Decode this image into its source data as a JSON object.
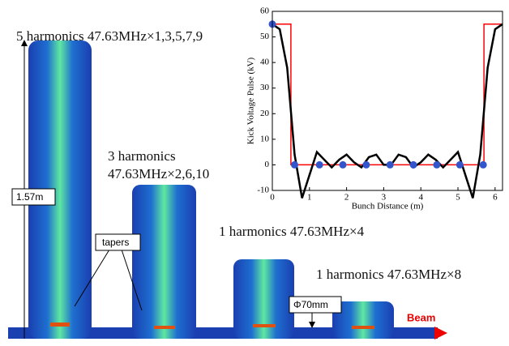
{
  "chart_data": {
    "type": "line",
    "xlabel": "Bunch Distance (m)",
    "ylabel": "Kick Voltage Pulse (kV)",
    "xlim": [
      0,
      6.2
    ],
    "xticks": [
      0,
      1,
      2,
      3,
      4,
      5,
      6
    ],
    "ylim": [
      -10,
      60
    ],
    "yticks": [
      -10,
      0,
      10,
      20,
      30,
      40,
      50,
      60
    ],
    "series": [
      {
        "style": "line",
        "color": "#ff0000",
        "x": [
          0,
          0.5,
          0.5,
          5.7,
          5.7,
          6.2
        ],
        "values": [
          55,
          55,
          0,
          0,
          55,
          55
        ]
      },
      {
        "style": "line",
        "color": "#000000",
        "x": [
          0,
          0.2,
          0.4,
          0.6,
          0.8,
          1.0,
          1.2,
          1.4,
          1.6,
          1.8,
          2.0,
          2.2,
          2.4,
          2.6,
          2.8,
          3.0,
          3.2,
          3.4,
          3.6,
          3.8,
          4.0,
          4.2,
          4.4,
          4.6,
          4.8,
          5.0,
          5.2,
          5.4,
          5.6,
          5.8,
          6.0,
          6.2
        ],
        "values": [
          55,
          53,
          38,
          4,
          -13,
          -4,
          5,
          2,
          -1,
          2,
          4,
          1,
          -1,
          3,
          4,
          0,
          0,
          4,
          3,
          -1,
          1,
          4,
          2,
          -1,
          2,
          5,
          -4,
          -13,
          4,
          38,
          53,
          55
        ]
      },
      {
        "style": "markers",
        "color": "#3355cc",
        "x": [
          0,
          0.6,
          1.27,
          1.9,
          2.53,
          3.17,
          3.8,
          4.43,
          5.05,
          5.68
        ],
        "values": [
          55,
          0,
          0,
          0,
          0,
          0,
          0,
          0,
          0,
          0
        ]
      }
    ]
  },
  "figure": {
    "cavity_labels": [
      "5 harmonics 47.63MHz×1,3,5,7,9",
      "3 harmonics",
      "47.63MHz×2,6,10",
      "1 harmonics 47.63MHz×4",
      "1 harmonics 47.63MHz×8"
    ],
    "height_label": "1.57m",
    "tapers_label": "tapers",
    "diameter_label": "Φ70mm",
    "beam_label": "Beam"
  }
}
